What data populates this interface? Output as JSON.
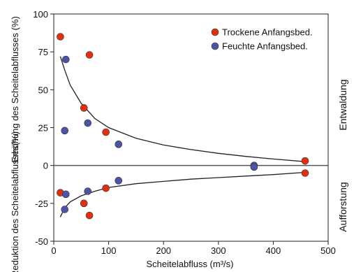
{
  "chart_data": {
    "type": "scatter",
    "title": "",
    "xlabel": "Scheitelabfluss (m³/s)",
    "ylabel_upper": "Erhöhung des Scheitelabflusses  (%)",
    "ylabel_lower": "Reduktion des Scheitelabflusses(%)",
    "right_label_upper": "Entwaldung",
    "right_label_lower": "Aufforstung",
    "xlim": [
      0,
      500
    ],
    "ylim": [
      -50,
      100
    ],
    "x_ticks": [
      "0",
      "100",
      "200",
      "300",
      "400",
      "500"
    ],
    "y_ticks": [
      "-50",
      "-25",
      "0",
      "25",
      "50",
      "75",
      "100"
    ],
    "legend_position": "top-right",
    "colors": {
      "trockene": "#e03010",
      "feuchte": "#4a55a8",
      "curve": "#222222",
      "zero_line": "#555555"
    },
    "series": [
      {
        "name": "Trockene Anfangsbed.",
        "points": [
          [
            12,
            85
          ],
          [
            65,
            73
          ],
          [
            55,
            38
          ],
          [
            95,
            22
          ],
          [
            458,
            3
          ],
          [
            12,
            -18
          ],
          [
            55,
            -25
          ],
          [
            65,
            -33
          ],
          [
            95,
            -15
          ],
          [
            458,
            -5
          ]
        ]
      },
      {
        "name": "Feuchte Anfangsbed.",
        "points": [
          [
            22,
            70
          ],
          [
            62,
            28
          ],
          [
            20,
            23
          ],
          [
            118,
            14
          ],
          [
            365,
            0
          ],
          [
            22,
            -19
          ],
          [
            62,
            -17
          ],
          [
            20,
            -29
          ],
          [
            118,
            -10
          ],
          [
            365,
            -1
          ]
        ]
      }
    ],
    "fit_curves": [
      {
        "points": [
          [
            12,
            72
          ],
          [
            20,
            63
          ],
          [
            30,
            53
          ],
          [
            50,
            41
          ],
          [
            75,
            31
          ],
          [
            100,
            25
          ],
          [
            150,
            18
          ],
          [
            200,
            13.5
          ],
          [
            250,
            10.5
          ],
          [
            300,
            8
          ],
          [
            350,
            6
          ],
          [
            400,
            4.3
          ],
          [
            460,
            2.5
          ]
        ]
      },
      {
        "points": [
          [
            12,
            -34
          ],
          [
            20,
            -28
          ],
          [
            30,
            -24
          ],
          [
            50,
            -20
          ],
          [
            75,
            -17
          ],
          [
            100,
            -14.5
          ],
          [
            150,
            -12
          ],
          [
            200,
            -10.5
          ],
          [
            250,
            -9
          ],
          [
            300,
            -8
          ],
          [
            350,
            -7
          ],
          [
            400,
            -6
          ],
          [
            460,
            -4.5
          ]
        ]
      }
    ]
  }
}
